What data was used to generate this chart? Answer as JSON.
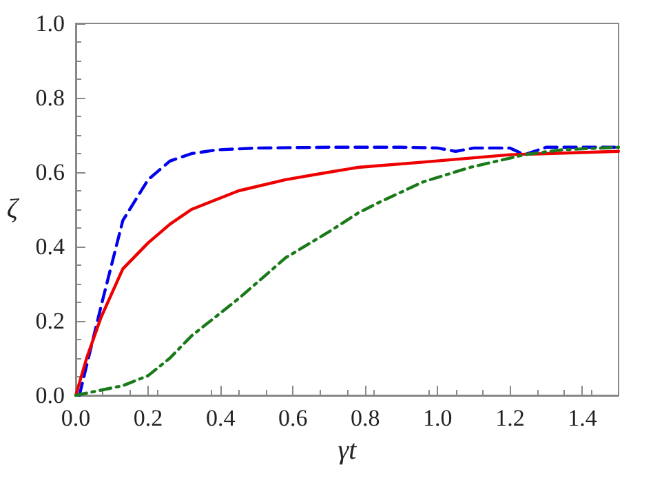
{
  "chart_data": {
    "type": "line",
    "xlabel": "γt",
    "ylabel": "ζ",
    "xlim": [
      0,
      1.5
    ],
    "xticks": [
      {
        "value": 0,
        "label": "0.0"
      },
      0.2,
      0.4,
      0.6,
      0.8,
      {
        "value": 1,
        "label": "1.0"
      },
      1.2,
      1.4
    ],
    "ylim": [
      0,
      1
    ],
    "yticks": [
      {
        "value": 0,
        "label": "0.0"
      },
      0.2,
      0.4,
      0.6,
      0.8,
      {
        "value": 1,
        "label": "1.0"
      }
    ],
    "grid": false,
    "marker": "none",
    "series": [
      {
        "color": "#0000ee",
        "line_style": "dashed",
        "x": [
          0.01,
          0.07,
          0.13,
          0.2,
          0.26,
          0.32,
          0.39,
          0.5,
          0.7,
          0.9,
          1.0,
          1.05,
          1.1,
          1.2,
          1.24,
          1.3,
          1.4,
          1.5
        ],
        "values": [
          0,
          0.24,
          0.47,
          0.58,
          0.63,
          0.65,
          0.66,
          0.665,
          0.667,
          0.667,
          0.665,
          0.656,
          0.665,
          0.665,
          0.647,
          0.667,
          0.667,
          0.667
        ]
      },
      {
        "color": "#ee0000",
        "line_style": "solid",
        "x": [
          0,
          0.03,
          0.07,
          0.13,
          0.2,
          0.26,
          0.32,
          0.45,
          0.58,
          0.7,
          0.78,
          0.96,
          1.2,
          1.5
        ],
        "values": [
          0,
          0.1,
          0.21,
          0.34,
          0.41,
          0.46,
          0.5,
          0.55,
          0.58,
          0.6,
          0.613,
          0.627,
          0.647,
          0.656
        ]
      },
      {
        "color": "#1a7a1a",
        "line_style": "dashdot",
        "x": [
          0,
          0.13,
          0.2,
          0.26,
          0.32,
          0.45,
          0.58,
          0.7,
          0.78,
          0.83,
          0.96,
          1.09,
          1.24,
          1.34,
          1.5
        ],
        "values": [
          0,
          0.026,
          0.053,
          0.1,
          0.16,
          0.26,
          0.37,
          0.44,
          0.49,
          0.515,
          0.574,
          0.613,
          0.647,
          0.66,
          0.667
        ]
      }
    ]
  }
}
